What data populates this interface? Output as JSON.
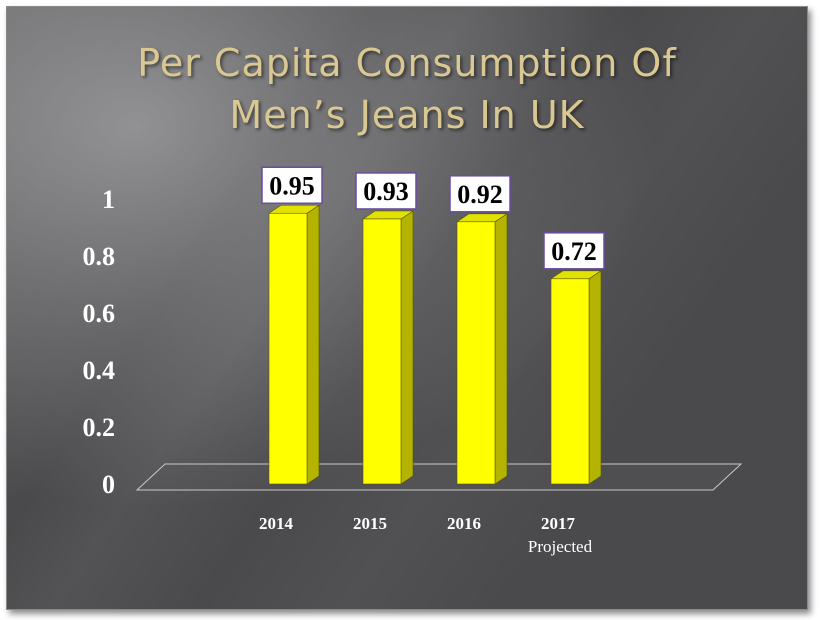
{
  "title_lines": [
    "Per Capita Consumption Of",
    "Men’s Jeans In UK"
  ],
  "colors": {
    "bar_front": "#ffff00",
    "bar_side": "#b4b400",
    "bar_top": "#e2e200",
    "label_border": "#6a4ca0",
    "title": "#d9c891"
  },
  "chart_data": {
    "type": "bar",
    "title": "Per Capita Consumption Of Men’s Jeans In UK",
    "categories": [
      "2014",
      "2015",
      "2016",
      "2017"
    ],
    "category_sublabels": [
      "",
      "",
      "",
      "Projected"
    ],
    "values": [
      0.95,
      0.93,
      0.92,
      0.72
    ],
    "data_labels": [
      "0.95",
      "0.93",
      "0.92",
      "0.72"
    ],
    "ylim": [
      0,
      1
    ],
    "yticks": [
      "0",
      "0.2",
      "0.4",
      "0.6",
      "0.8",
      "1"
    ],
    "xlabel": "",
    "ylabel": "",
    "grid": false,
    "legend": "none",
    "style": "3d"
  }
}
